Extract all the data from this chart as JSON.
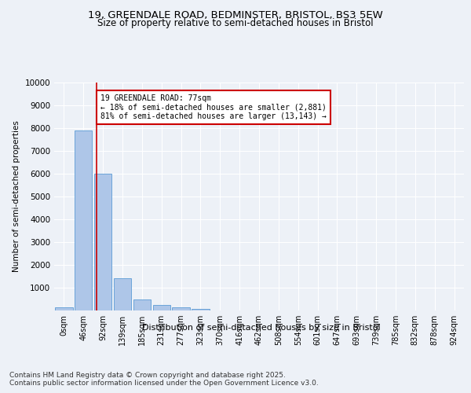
{
  "title_line1": "19, GREENDALE ROAD, BEDMINSTER, BRISTOL, BS3 5EW",
  "title_line2": "Size of property relative to semi-detached houses in Bristol",
  "xlabel": "Distribution of semi-detached houses by size in Bristol",
  "ylabel": "Number of semi-detached properties",
  "bar_labels": [
    "0sqm",
    "46sqm",
    "92sqm",
    "139sqm",
    "185sqm",
    "231sqm",
    "277sqm",
    "323sqm",
    "370sqm",
    "416sqm",
    "462sqm",
    "508sqm",
    "554sqm",
    "601sqm",
    "647sqm",
    "693sqm",
    "739sqm",
    "785sqm",
    "832sqm",
    "878sqm",
    "924sqm"
  ],
  "bar_values": [
    150,
    7900,
    6000,
    1400,
    480,
    230,
    130,
    60,
    0,
    0,
    0,
    0,
    0,
    0,
    0,
    0,
    0,
    0,
    0,
    0,
    0
  ],
  "bar_color": "#aec6e8",
  "bar_edge_color": "#5b9bd5",
  "vline_x": 1.68,
  "annotation_title": "19 GREENDALE ROAD: 77sqm",
  "annotation_line1": "← 18% of semi-detached houses are smaller (2,881)",
  "annotation_line2": "81% of semi-detached houses are larger (13,143) →",
  "annotation_box_color": "#ffffff",
  "annotation_box_edge": "#cc0000",
  "vline_color": "#cc0000",
  "ylim": [
    0,
    10000
  ],
  "yticks": [
    0,
    1000,
    2000,
    3000,
    4000,
    5000,
    6000,
    7000,
    8000,
    9000,
    10000
  ],
  "footer_line1": "Contains HM Land Registry data © Crown copyright and database right 2025.",
  "footer_line2": "Contains public sector information licensed under the Open Government Licence v3.0.",
  "background_color": "#edf1f7",
  "plot_bg_color": "#edf1f7",
  "grid_color": "#ffffff",
  "title_fontsize": 9.5,
  "subtitle_fontsize": 8.5,
  "axis_fontsize": 7,
  "ylabel_fontsize": 7.5,
  "footer_fontsize": 6.5,
  "annotation_fontsize": 7
}
